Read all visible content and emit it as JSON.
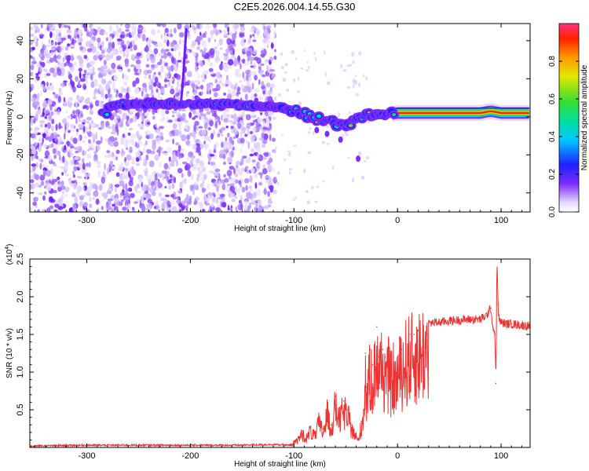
{
  "title": "C2E5.2026.004.14.55.G30",
  "chart_data": [
    {
      "type": "heatmap",
      "xlabel": "Height of straight line (km)",
      "ylabel": "Frequency (Hz)",
      "xlim": [
        -355,
        128
      ],
      "ylim": [
        -50,
        49
      ],
      "xticks": [
        -300,
        -200,
        -100,
        0,
        100
      ],
      "xtick_labels": [
        "-300",
        "-200",
        "-100",
        "0",
        "100"
      ],
      "yticks": [
        -40,
        -20,
        0,
        20,
        40
      ],
      "ytick_labels": [
        "-40",
        "-20",
        "0",
        "20",
        "40"
      ],
      "colorbar": {
        "label": "Normalized spectral amplitude",
        "range": [
          0,
          1
        ],
        "ticks": [
          0.0,
          0.2,
          0.4,
          0.6,
          0.8
        ],
        "tick_labels": [
          "0.0",
          "0.2",
          "0.4",
          "0.6",
          "0.8"
        ]
      },
      "ridge": {
        "x": [
          -280,
          -250,
          -220,
          -200,
          -180,
          -150,
          -120,
          -100,
          -80,
          -70,
          -60,
          -50,
          -40,
          -30,
          -20,
          -10,
          0,
          20,
          40,
          60,
          80,
          90,
          100,
          128
        ],
        "freq_hz": [
          6,
          7,
          7,
          7,
          6.5,
          6,
          5.5,
          3,
          -1,
          -2,
          -3,
          -4,
          -2,
          1,
          2,
          1,
          2,
          2,
          2,
          2,
          2,
          3,
          2,
          2
        ]
      },
      "grid": false
    },
    {
      "type": "line",
      "xlabel": "Height of straight line (km)",
      "ylabel": "SNR (10 * v/v)",
      "scale_label": "(x10",
      "scale_exp": "4",
      "scale_close": ")",
      "xlim": [
        -355,
        128
      ],
      "ylim": [
        0,
        2.5
      ],
      "xticks": [
        -300,
        -200,
        -100,
        0,
        100
      ],
      "xtick_labels": [
        "-300",
        "-200",
        "-100",
        "0",
        "100"
      ],
      "yticks": [
        0.5,
        1.0,
        1.5,
        2.0,
        2.5
      ],
      "ytick_labels": [
        "0.5",
        "1.0",
        "1.5",
        "2.0",
        "2.5"
      ],
      "series": [
        {
          "color": "#ee3333",
          "x": [
            -355,
            -300,
            -250,
            -200,
            -150,
            -120,
            -105,
            -98,
            -92,
            -88,
            -84,
            -80,
            -76,
            -72,
            -68,
            -64,
            -60,
            -56,
            -52,
            -48,
            -44,
            -42,
            -40,
            -38,
            -35,
            -33,
            -31,
            -30,
            -28,
            -26,
            -24,
            -22,
            -20,
            -18,
            -16,
            -14,
            -12,
            -10,
            -8,
            -6,
            -4,
            -2,
            0,
            4,
            8,
            12,
            16,
            20,
            25,
            30,
            40,
            50,
            60,
            70,
            80,
            86,
            90,
            92,
            94,
            95,
            96,
            97,
            98,
            100,
            105,
            110,
            115,
            120,
            128
          ],
          "y": [
            0.02,
            0.03,
            0.03,
            0.03,
            0.03,
            0.04,
            0.03,
            0.1,
            0.22,
            0.15,
            0.28,
            0.18,
            0.4,
            0.25,
            0.55,
            0.3,
            0.68,
            0.45,
            0.62,
            0.5,
            0.3,
            0.22,
            0.18,
            0.1,
            0.35,
            0.5,
            1.25,
            0.8,
            1.0,
            1.3,
            1.1,
            1.25,
            1.6,
            1.2,
            1.35,
            1.3,
            1.2,
            1.1,
            1.3,
            1.05,
            1.2,
            1.05,
            1.2,
            1.3,
            1.45,
            1.5,
            1.5,
            1.55,
            1.62,
            1.65,
            1.66,
            1.68,
            1.69,
            1.7,
            1.7,
            1.75,
            1.85,
            1.6,
            1.5,
            0.85,
            2.5,
            1.9,
            1.7,
            1.66,
            1.64,
            1.64,
            1.63,
            1.62,
            1.61
          ]
        }
      ],
      "grid": false
    }
  ]
}
